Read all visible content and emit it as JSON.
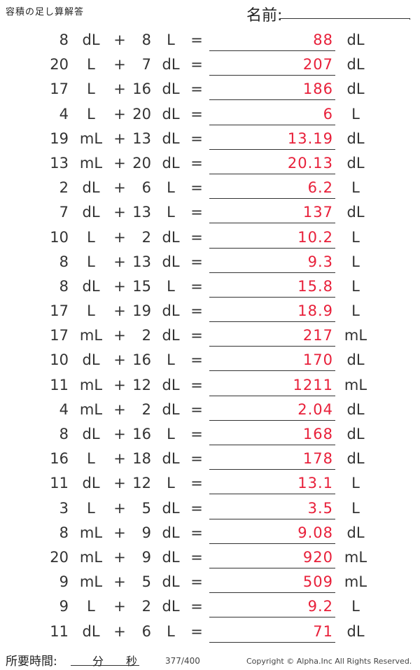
{
  "header": {
    "title": "容積の足し算解答",
    "name_label": "名前:",
    "name_dot": "."
  },
  "rows": [
    {
      "a": "8",
      "u1": "dL",
      "b": "8",
      "u2": "L",
      "ans": "88",
      "u3": "dL"
    },
    {
      "a": "20",
      "u1": "L",
      "b": "7",
      "u2": "dL",
      "ans": "207",
      "u3": "dL"
    },
    {
      "a": "17",
      "u1": "L",
      "b": "16",
      "u2": "dL",
      "ans": "186",
      "u3": "dL"
    },
    {
      "a": "4",
      "u1": "L",
      "b": "20",
      "u2": "dL",
      "ans": "6",
      "u3": "L"
    },
    {
      "a": "19",
      "u1": "mL",
      "b": "13",
      "u2": "dL",
      "ans": "13.19",
      "u3": "dL"
    },
    {
      "a": "13",
      "u1": "mL",
      "b": "20",
      "u2": "dL",
      "ans": "20.13",
      "u3": "dL"
    },
    {
      "a": "2",
      "u1": "dL",
      "b": "6",
      "u2": "L",
      "ans": "6.2",
      "u3": "L"
    },
    {
      "a": "7",
      "u1": "dL",
      "b": "13",
      "u2": "L",
      "ans": "137",
      "u3": "dL"
    },
    {
      "a": "10",
      "u1": "L",
      "b": "2",
      "u2": "dL",
      "ans": "10.2",
      "u3": "L"
    },
    {
      "a": "8",
      "u1": "L",
      "b": "13",
      "u2": "dL",
      "ans": "9.3",
      "u3": "L"
    },
    {
      "a": "8",
      "u1": "dL",
      "b": "15",
      "u2": "L",
      "ans": "15.8",
      "u3": "L"
    },
    {
      "a": "17",
      "u1": "L",
      "b": "19",
      "u2": "dL",
      "ans": "18.9",
      "u3": "L"
    },
    {
      "a": "17",
      "u1": "mL",
      "b": "2",
      "u2": "dL",
      "ans": "217",
      "u3": "mL"
    },
    {
      "a": "10",
      "u1": "dL",
      "b": "16",
      "u2": "L",
      "ans": "170",
      "u3": "dL"
    },
    {
      "a": "11",
      "u1": "mL",
      "b": "12",
      "u2": "dL",
      "ans": "1211",
      "u3": "mL"
    },
    {
      "a": "4",
      "u1": "mL",
      "b": "2",
      "u2": "dL",
      "ans": "2.04",
      "u3": "dL"
    },
    {
      "a": "8",
      "u1": "dL",
      "b": "16",
      "u2": "L",
      "ans": "168",
      "u3": "dL"
    },
    {
      "a": "16",
      "u1": "L",
      "b": "18",
      "u2": "dL",
      "ans": "178",
      "u3": "dL"
    },
    {
      "a": "11",
      "u1": "dL",
      "b": "12",
      "u2": "L",
      "ans": "13.1",
      "u3": "L"
    },
    {
      "a": "3",
      "u1": "L",
      "b": "5",
      "u2": "dL",
      "ans": "3.5",
      "u3": "L"
    },
    {
      "a": "8",
      "u1": "mL",
      "b": "9",
      "u2": "dL",
      "ans": "9.08",
      "u3": "dL"
    },
    {
      "a": "20",
      "u1": "mL",
      "b": "9",
      "u2": "dL",
      "ans": "920",
      "u3": "mL"
    },
    {
      "a": "9",
      "u1": "mL",
      "b": "5",
      "u2": "dL",
      "ans": "509",
      "u3": "mL"
    },
    {
      "a": "9",
      "u1": "L",
      "b": "2",
      "u2": "dL",
      "ans": "9.2",
      "u3": "L"
    },
    {
      "a": "11",
      "u1": "dL",
      "b": "6",
      "u2": "L",
      "ans": "71",
      "u3": "dL"
    }
  ],
  "symbols": {
    "plus": "+",
    "equals": "="
  },
  "footer": {
    "time_label": "所要時間:",
    "minutes_label": "分",
    "seconds_label": "秒",
    "page_number": "377/400",
    "copyright": "Copyright © Alpha.Inc All Rights Reserved."
  },
  "colors": {
    "answer": "#e8203a",
    "text": "#333333"
  }
}
